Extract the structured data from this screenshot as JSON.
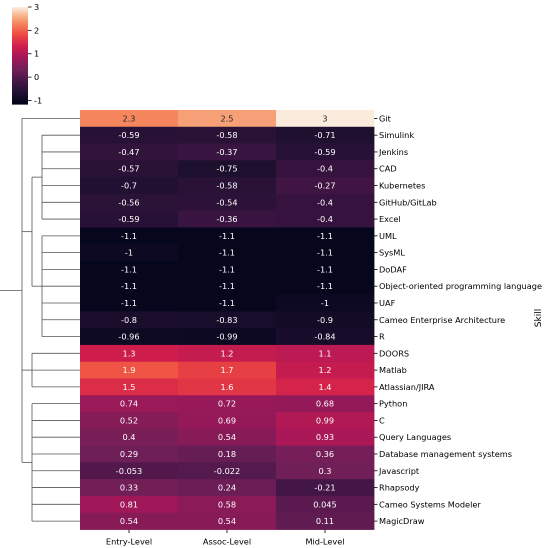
{
  "chart_data": {
    "type": "heatmap",
    "title": "",
    "xlabel": "",
    "ylabel": "Skill",
    "columns": [
      "Entry-Level",
      "Assoc-Level",
      "Mid-Level"
    ],
    "rows": [
      {
        "label": "Git",
        "values": [
          2.3,
          2.5,
          3
        ]
      },
      {
        "label": "Simulink",
        "values": [
          -0.59,
          -0.58,
          -0.71
        ]
      },
      {
        "label": "Jenkins",
        "values": [
          -0.47,
          -0.37,
          -0.59
        ]
      },
      {
        "label": "CAD",
        "values": [
          -0.57,
          -0.75,
          -0.4
        ]
      },
      {
        "label": "Kubernetes",
        "values": [
          -0.7,
          -0.58,
          -0.27
        ]
      },
      {
        "label": "GitHub/GitLab",
        "values": [
          -0.56,
          -0.54,
          -0.4
        ]
      },
      {
        "label": "Excel",
        "values": [
          -0.59,
          -0.36,
          -0.4
        ]
      },
      {
        "label": "UML",
        "values": [
          -1.1,
          -1.1,
          -1.1
        ]
      },
      {
        "label": "SysML",
        "values": [
          -1,
          -1.1,
          -1.1
        ]
      },
      {
        "label": "DoDAF",
        "values": [
          -1.1,
          -1.1,
          -1.1
        ]
      },
      {
        "label": "Object-oriented programming language",
        "values": [
          -1.1,
          -1.1,
          -1.1
        ]
      },
      {
        "label": "UAF",
        "values": [
          -1.1,
          -1.1,
          -1
        ]
      },
      {
        "label": "Cameo Enterprise Architecture",
        "values": [
          -0.8,
          -0.83,
          -0.9
        ]
      },
      {
        "label": "R",
        "values": [
          -0.96,
          -0.99,
          -0.84
        ]
      },
      {
        "label": "DOORS",
        "values": [
          1.3,
          1.2,
          1.1
        ]
      },
      {
        "label": "Matlab",
        "values": [
          1.9,
          1.7,
          1.2
        ]
      },
      {
        "label": "Atlassian/JIRA",
        "values": [
          1.5,
          1.6,
          1.4
        ]
      },
      {
        "label": "Python",
        "values": [
          0.74,
          0.72,
          0.68
        ]
      },
      {
        "label": "C",
        "values": [
          0.52,
          0.69,
          0.99
        ]
      },
      {
        "label": "Query Languages",
        "values": [
          0.4,
          0.54,
          0.93
        ]
      },
      {
        "label": "Database management systems",
        "values": [
          0.29,
          0.18,
          0.36
        ]
      },
      {
        "label": "Javascript",
        "values": [
          -0.053,
          -0.022,
          0.3
        ]
      },
      {
        "label": "Rhapsody",
        "values": [
          0.33,
          0.24,
          -0.21
        ]
      },
      {
        "label": "Cameo Systems Modeler",
        "values": [
          0.81,
          0.58,
          0.045
        ]
      },
      {
        "label": "MagicDraw",
        "values": [
          0.54,
          0.54,
          0.11
        ]
      }
    ],
    "colorbar": {
      "ticks": [
        3,
        2,
        1,
        0,
        -1
      ],
      "vmin": -1.15,
      "vmax": 3.0,
      "colormap": "rocket"
    },
    "row_dendrogram": true,
    "grid": false
  }
}
